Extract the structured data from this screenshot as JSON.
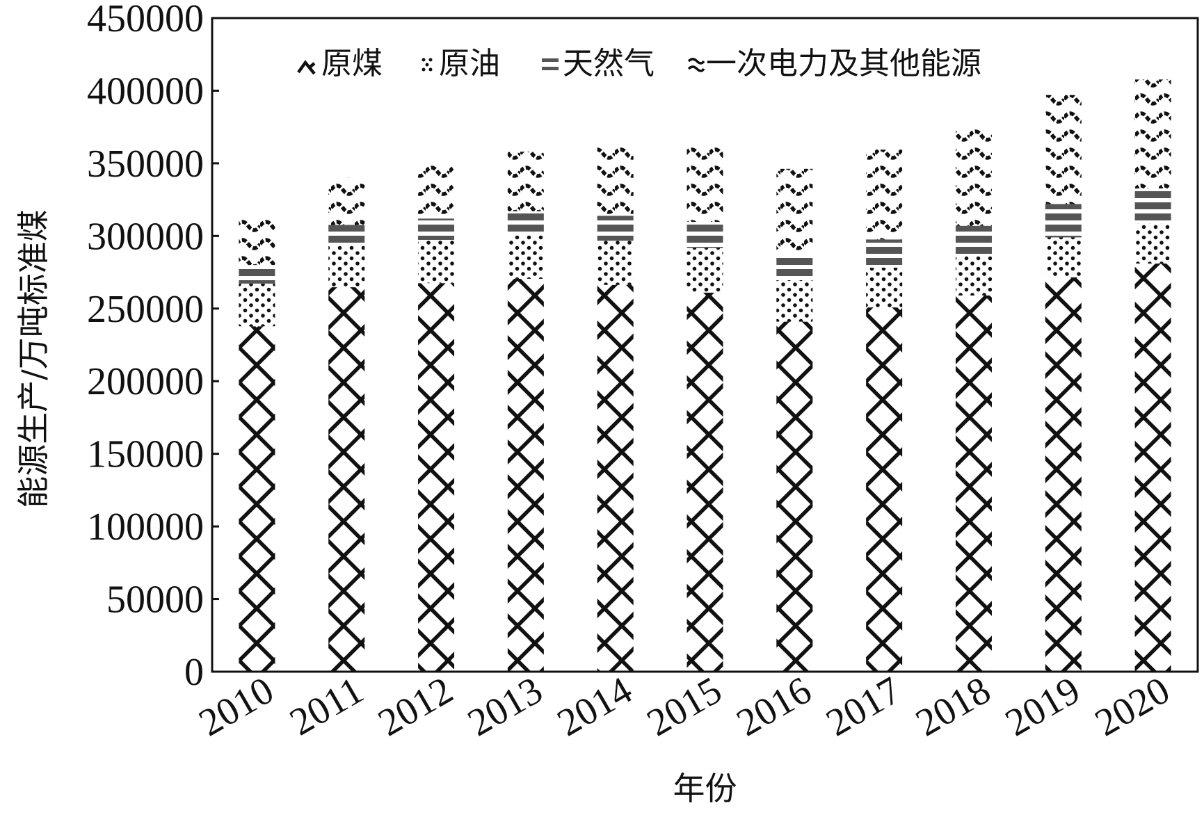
{
  "chart_data": {
    "type": "bar",
    "stacked": true,
    "xlabel": "年份",
    "ylabel": "能源生产/万吨标准煤",
    "categories": [
      "2010",
      "2011",
      "2012",
      "2013",
      "2014",
      "2015",
      "2016",
      "2017",
      "2018",
      "2019",
      "2020"
    ],
    "ylim": [
      0,
      450000
    ],
    "yticks": [
      "0",
      "50000",
      "100000",
      "150000",
      "200000",
      "250000",
      "300000",
      "350000",
      "400000",
      "450000"
    ],
    "legend_position": "top",
    "grid": false,
    "series": [
      {
        "name": "原煤",
        "pattern": "zigzag-lattice",
        "values": [
          237800,
          264700,
          267500,
          270500,
          266300,
          261000,
          241000,
          250800,
          259000,
          271500,
          281000
        ]
      },
      {
        "name": "原油",
        "pattern": "dots",
        "values": [
          29400,
          29000,
          29800,
          30300,
          30400,
          30700,
          28500,
          27400,
          27000,
          27500,
          27500
        ]
      },
      {
        "name": "天然气",
        "pattern": "stripes",
        "values": [
          12800,
          13900,
          14700,
          16200,
          17200,
          18000,
          17900,
          19400,
          21000,
          23000,
          24200
        ]
      },
      {
        "name": "一次电力及其他能源",
        "pattern": "waves",
        "values": [
          32100,
          32500,
          39200,
          41000,
          48300,
          52600,
          58800,
          61800,
          70000,
          75000,
          75000
        ]
      }
    ]
  },
  "legend": {
    "items": [
      {
        "label": "原煤",
        "icon": "coal-pattern-icon"
      },
      {
        "label": "原油",
        "icon": "crude-oil-pattern-icon"
      },
      {
        "label": "天然气",
        "icon": "natural-gas-pattern-icon"
      },
      {
        "label": "一次电力及其他能源",
        "icon": "primary-electricity-pattern-icon"
      }
    ]
  },
  "colors": {
    "ink": "#111111",
    "gas": "#555555",
    "background": "#ffffff"
  }
}
